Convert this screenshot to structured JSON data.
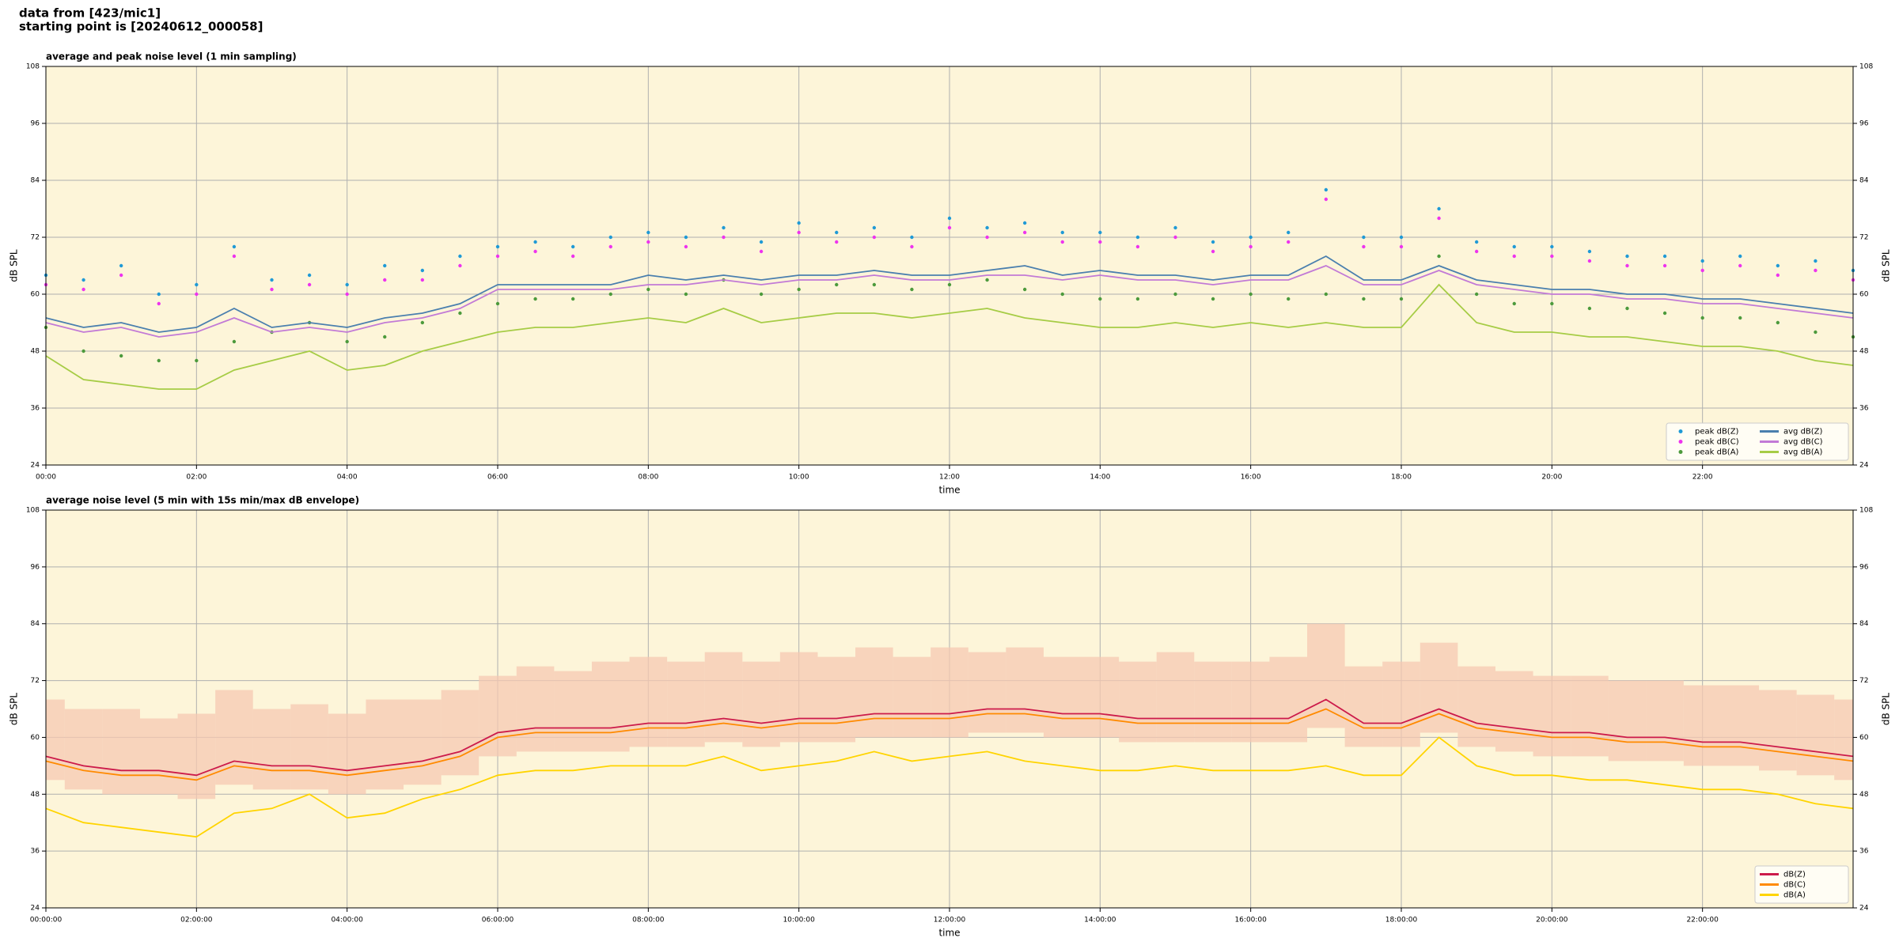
{
  "header": {
    "line1": "data from [423/mic1]",
    "line2": "starting point is [20240612_000058]"
  },
  "chart_data": [
    {
      "type": "line",
      "title": "average and peak noise level (1 min sampling)",
      "xlabel": "time",
      "ylabel": "dB SPL",
      "x": [
        0,
        0.5,
        1,
        1.5,
        2,
        2.5,
        3,
        3.5,
        4,
        4.5,
        5,
        5.5,
        6,
        6.5,
        7,
        7.5,
        8,
        8.5,
        9,
        9.5,
        10,
        10.5,
        11,
        11.5,
        12,
        12.5,
        13,
        13.5,
        14,
        14.5,
        15,
        15.5,
        16,
        16.5,
        17,
        17.5,
        18,
        18.5,
        19,
        19.5,
        20,
        20.5,
        21,
        21.5,
        22,
        22.5,
        23,
        23.5,
        24
      ],
      "xlim": [
        0,
        24
      ],
      "xticks": [
        {
          "value": 0,
          "label": "00:00"
        },
        {
          "value": 2,
          "label": "02:00"
        },
        {
          "value": 4,
          "label": "04:00"
        },
        {
          "value": 6,
          "label": "06:00"
        },
        {
          "value": 8,
          "label": "08:00"
        },
        {
          "value": 10,
          "label": "10:00"
        },
        {
          "value": 12,
          "label": "12:00"
        },
        {
          "value": 14,
          "label": "14:00"
        },
        {
          "value": 16,
          "label": "16:00"
        },
        {
          "value": 18,
          "label": "18:00"
        },
        {
          "value": 20,
          "label": "20:00"
        },
        {
          "value": 22,
          "label": "22:00"
        }
      ],
      "ylim": [
        24,
        108
      ],
      "yticks": [
        24,
        36,
        48,
        60,
        72,
        84,
        96,
        108
      ],
      "grid": true,
      "background": "#fdf5d9",
      "legend": "lower right",
      "legend_columns": 2,
      "series": [
        {
          "name": "peak dB(Z)",
          "style": "markers",
          "color": "#1f9ad6",
          "values": [
            64,
            63,
            66,
            60,
            62,
            70,
            63,
            64,
            62,
            66,
            65,
            68,
            70,
            71,
            70,
            72,
            73,
            72,
            74,
            71,
            75,
            73,
            74,
            72,
            76,
            74,
            75,
            73,
            73,
            72,
            74,
            71,
            72,
            73,
            82,
            72,
            72,
            78,
            71,
            70,
            70,
            69,
            68,
            68,
            67,
            68,
            66,
            67,
            65
          ]
        },
        {
          "name": "peak dB(C)",
          "style": "markers",
          "color": "#ee33ee",
          "values": [
            62,
            61,
            64,
            58,
            60,
            68,
            61,
            62,
            60,
            63,
            63,
            66,
            68,
            69,
            68,
            70,
            71,
            70,
            72,
            69,
            73,
            71,
            72,
            70,
            74,
            72,
            73,
            71,
            71,
            70,
            72,
            69,
            70,
            71,
            80,
            70,
            70,
            76,
            69,
            68,
            68,
            67,
            66,
            66,
            65,
            66,
            64,
            65,
            63
          ]
        },
        {
          "name": "peak dB(A)",
          "style": "markers",
          "color": "#4c9a3c",
          "values": [
            53,
            48,
            47,
            46,
            46,
            50,
            52,
            54,
            50,
            51,
            54,
            56,
            58,
            59,
            59,
            60,
            61,
            60,
            63,
            60,
            61,
            62,
            62,
            61,
            62,
            63,
            61,
            60,
            59,
            59,
            60,
            59,
            60,
            59,
            60,
            59,
            59,
            68,
            60,
            58,
            58,
            57,
            57,
            56,
            55,
            55,
            54,
            52,
            51
          ]
        },
        {
          "name": "avg dB(Z)",
          "style": "line",
          "color": "#4a7fae",
          "values": [
            55,
            53,
            54,
            52,
            53,
            57,
            53,
            54,
            53,
            55,
            56,
            58,
            62,
            62,
            62,
            62,
            64,
            63,
            64,
            63,
            64,
            64,
            65,
            64,
            64,
            65,
            66,
            64,
            65,
            64,
            64,
            63,
            64,
            64,
            68,
            63,
            63,
            66,
            63,
            62,
            61,
            61,
            60,
            60,
            59,
            59,
            58,
            57,
            56
          ]
        },
        {
          "name": "avg dB(C)",
          "style": "line",
          "color": "#c27ad6",
          "values": [
            54,
            52,
            53,
            51,
            52,
            55,
            52,
            53,
            52,
            54,
            55,
            57,
            61,
            61,
            61,
            61,
            62,
            62,
            63,
            62,
            63,
            63,
            64,
            63,
            63,
            64,
            64,
            63,
            64,
            63,
            63,
            62,
            63,
            63,
            66,
            62,
            62,
            65,
            62,
            61,
            60,
            60,
            59,
            59,
            58,
            58,
            57,
            56,
            55
          ]
        },
        {
          "name": "avg dB(A)",
          "style": "line",
          "color": "#a6cc45",
          "values": [
            47,
            42,
            41,
            40,
            40,
            44,
            46,
            48,
            44,
            45,
            48,
            50,
            52,
            53,
            53,
            54,
            55,
            54,
            57,
            54,
            55,
            56,
            56,
            55,
            56,
            57,
            55,
            54,
            53,
            53,
            54,
            53,
            54,
            53,
            54,
            53,
            53,
            62,
            54,
            52,
            52,
            51,
            51,
            50,
            49,
            49,
            48,
            46,
            45
          ]
        }
      ]
    },
    {
      "type": "line",
      "title": "average noise level (5 min with 15s min/max dB envelope)",
      "xlabel": "time",
      "ylabel": "dB SPL",
      "x": [
        0,
        0.5,
        1,
        1.5,
        2,
        2.5,
        3,
        3.5,
        4,
        4.5,
        5,
        5.5,
        6,
        6.5,
        7,
        7.5,
        8,
        8.5,
        9,
        9.5,
        10,
        10.5,
        11,
        11.5,
        12,
        12.5,
        13,
        13.5,
        14,
        14.5,
        15,
        15.5,
        16,
        16.5,
        17,
        17.5,
        18,
        18.5,
        19,
        19.5,
        20,
        20.5,
        21,
        21.5,
        22,
        22.5,
        23,
        23.5,
        24
      ],
      "xlim": [
        0,
        24
      ],
      "xticks": [
        {
          "value": 0,
          "label": "00:00:00"
        },
        {
          "value": 2,
          "label": "02:00:00"
        },
        {
          "value": 4,
          "label": "04:00:00"
        },
        {
          "value": 6,
          "label": "06:00:00"
        },
        {
          "value": 8,
          "label": "08:00:00"
        },
        {
          "value": 10,
          "label": "10:00:00"
        },
        {
          "value": 12,
          "label": "12:00:00"
        },
        {
          "value": 14,
          "label": "14:00:00"
        },
        {
          "value": 16,
          "label": "16:00:00"
        },
        {
          "value": 18,
          "label": "18:00:00"
        },
        {
          "value": 20,
          "label": "20:00:00"
        },
        {
          "value": 22,
          "label": "22:00:00"
        }
      ],
      "ylim": [
        24,
        108
      ],
      "yticks": [
        24,
        36,
        48,
        60,
        72,
        84,
        96,
        108
      ],
      "grid": true,
      "background": "#fdf5d9",
      "legend": "lower right",
      "legend_columns": 1,
      "envelope": {
        "color": "#f6c8b2",
        "lower": [
          51,
          49,
          48,
          48,
          47,
          50,
          49,
          49,
          48,
          49,
          50,
          52,
          56,
          57,
          57,
          57,
          58,
          58,
          59,
          58,
          59,
          59,
          60,
          60,
          60,
          61,
          61,
          60,
          60,
          59,
          59,
          59,
          59,
          59,
          62,
          58,
          58,
          61,
          58,
          57,
          56,
          56,
          55,
          55,
          54,
          54,
          53,
          52,
          51
        ],
        "upper": [
          68,
          66,
          66,
          64,
          65,
          70,
          66,
          67,
          65,
          68,
          68,
          70,
          73,
          75,
          74,
          76,
          77,
          76,
          78,
          76,
          78,
          77,
          79,
          77,
          79,
          78,
          79,
          77,
          77,
          76,
          78,
          76,
          76,
          77,
          84,
          75,
          76,
          80,
          75,
          74,
          73,
          73,
          72,
          72,
          71,
          71,
          70,
          69,
          68
        ]
      },
      "series": [
        {
          "name": "dB(Z)",
          "style": "line",
          "color": "#cc1a4a",
          "values": [
            56,
            54,
            53,
            53,
            52,
            55,
            54,
            54,
            53,
            54,
            55,
            57,
            61,
            62,
            62,
            62,
            63,
            63,
            64,
            63,
            64,
            64,
            65,
            65,
            65,
            66,
            66,
            65,
            65,
            64,
            64,
            64,
            64,
            64,
            68,
            63,
            63,
            66,
            63,
            62,
            61,
            61,
            60,
            60,
            59,
            59,
            58,
            57,
            56
          ]
        },
        {
          "name": "dB(C)",
          "style": "line",
          "color": "#ff8a00",
          "values": [
            55,
            53,
            52,
            52,
            51,
            54,
            53,
            53,
            52,
            53,
            54,
            56,
            60,
            61,
            61,
            61,
            62,
            62,
            63,
            62,
            63,
            63,
            64,
            64,
            64,
            65,
            65,
            64,
            64,
            63,
            63,
            63,
            63,
            63,
            66,
            62,
            62,
            65,
            62,
            61,
            60,
            60,
            59,
            59,
            58,
            58,
            57,
            56,
            55
          ]
        },
        {
          "name": "dB(A)",
          "style": "line",
          "color": "#ffd400",
          "values": [
            45,
            42,
            41,
            40,
            39,
            44,
            45,
            48,
            43,
            44,
            47,
            49,
            52,
            53,
            53,
            54,
            54,
            54,
            56,
            53,
            54,
            55,
            57,
            55,
            56,
            57,
            55,
            54,
            53,
            53,
            54,
            53,
            53,
            53,
            54,
            52,
            52,
            60,
            54,
            52,
            52,
            51,
            51,
            50,
            49,
            49,
            48,
            46,
            45
          ]
        }
      ]
    }
  ]
}
